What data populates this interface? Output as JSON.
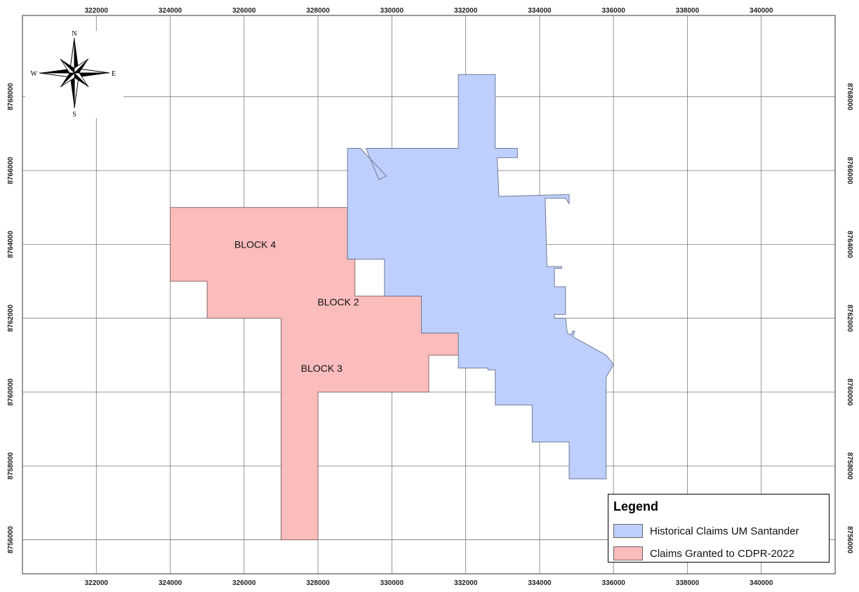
{
  "map": {
    "crs_units": "m",
    "x_ticks": [
      322000,
      324000,
      326000,
      328000,
      330000,
      332000,
      334000,
      336000,
      338000,
      340000
    ],
    "y_ticks": [
      8756000,
      8758000,
      8760000,
      8762000,
      8764000,
      8766000,
      8768000
    ],
    "x_tick_labels": [
      "322000",
      "324000",
      "326000",
      "328000",
      "330000",
      "332000",
      "334000",
      "336000",
      "338000",
      "340000"
    ],
    "y_tick_labels": [
      "8756000",
      "8758000",
      "8760000",
      "8762000",
      "8764000",
      "8766000",
      "8768000"
    ],
    "extent": {
      "x_min": 320000,
      "x_max": 342000,
      "y_min": 8755080,
      "y_max": 8770200
    },
    "grid": true,
    "colors": {
      "historical_fill": "#bfcffd",
      "historical_stroke": "#6f7a96",
      "granted_fill": "#fbbcbc",
      "granted_stroke": "#8a6a6a",
      "grid": "#7a7a7a"
    }
  },
  "compass": {
    "n": "N",
    "s": "S",
    "e": "E",
    "w": "W"
  },
  "blocks": [
    {
      "label": "BLOCK 4",
      "x": 326300,
      "y": 8763900
    },
    {
      "label": "BLOCK 2",
      "x": 328550,
      "y": 8762350
    },
    {
      "label": "BLOCK 3",
      "x": 328100,
      "y": 8760550
    }
  ],
  "features": {
    "granted": [
      [
        324000,
        8765000
      ],
      [
        328800,
        8765000
      ],
      [
        328800,
        8763600
      ],
      [
        329000,
        8763600
      ],
      [
        329000,
        8762600
      ],
      [
        330800,
        8762600
      ],
      [
        330800,
        8761600
      ],
      [
        331800,
        8761600
      ],
      [
        331800,
        8761000
      ],
      [
        331000,
        8761000
      ],
      [
        331000,
        8760000
      ],
      [
        328000,
        8760000
      ],
      [
        328000,
        8756000
      ],
      [
        327000,
        8756000
      ],
      [
        327000,
        8762000
      ],
      [
        325000,
        8762000
      ],
      [
        325000,
        8763000
      ],
      [
        324000,
        8763000
      ]
    ],
    "historical": [
      [
        328800,
        8766600
      ],
      [
        329150,
        8766600
      ],
      [
        329850,
        8765850
      ],
      [
        329650,
        8765750
      ],
      [
        329300,
        8766600
      ],
      [
        331800,
        8766600
      ],
      [
        331800,
        8768600
      ],
      [
        332800,
        8768600
      ],
      [
        332800,
        8766600
      ],
      [
        333400,
        8766600
      ],
      [
        333400,
        8766350
      ],
      [
        332850,
        8766350
      ],
      [
        332900,
        8765300
      ],
      [
        334800,
        8765350
      ],
      [
        334800,
        8765100
      ],
      [
        334700,
        8765250
      ],
      [
        334150,
        8765250
      ],
      [
        334200,
        8763400
      ],
      [
        334600,
        8763400
      ],
      [
        334600,
        8763350
      ],
      [
        334400,
        8763350
      ],
      [
        334400,
        8762850
      ],
      [
        334700,
        8762850
      ],
      [
        334700,
        8762100
      ],
      [
        334400,
        8762100
      ],
      [
        334400,
        8762000
      ],
      [
        334700,
        8762000
      ],
      [
        334750,
        8761600
      ],
      [
        334850,
        8761550
      ],
      [
        334900,
        8761650
      ],
      [
        334950,
        8761650
      ],
      [
        334900,
        8761500
      ],
      [
        335800,
        8761000
      ],
      [
        336000,
        8760750
      ],
      [
        335800,
        8760400
      ],
      [
        335800,
        8757650
      ],
      [
        334800,
        8757650
      ],
      [
        334800,
        8758650
      ],
      [
        333800,
        8758650
      ],
      [
        333800,
        8759650
      ],
      [
        332800,
        8759650
      ],
      [
        332800,
        8760600
      ],
      [
        332600,
        8760600
      ],
      [
        332600,
        8760650
      ],
      [
        331800,
        8760650
      ],
      [
        331800,
        8761600
      ],
      [
        330800,
        8761600
      ],
      [
        330800,
        8762600
      ],
      [
        329800,
        8762600
      ],
      [
        329800,
        8763600
      ],
      [
        328800,
        8763600
      ]
    ]
  },
  "legend": {
    "title": "Legend",
    "items": [
      {
        "label": "Historical Claims UM Santander",
        "color": "#bfcffd"
      },
      {
        "label": "Claims Granted to CDPR-2022",
        "color": "#fbbcbc"
      }
    ]
  }
}
